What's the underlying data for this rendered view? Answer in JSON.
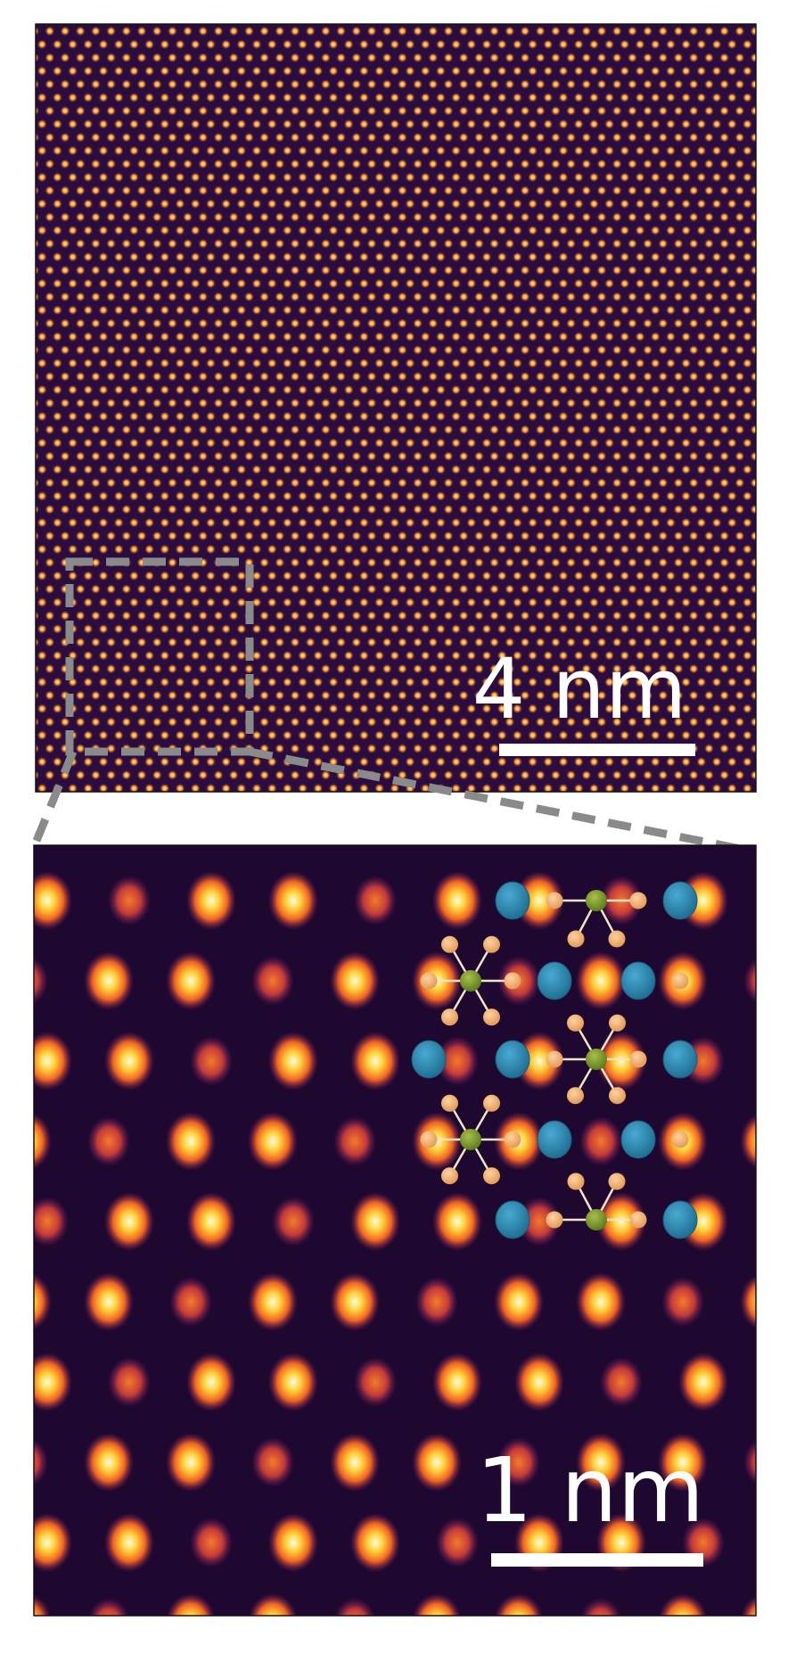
{
  "figure": {
    "top_panel": {
      "scale_bar_label": "4 nm"
    },
    "bottom_panel": {
      "scale_bar_label": "1 nm"
    }
  },
  "colors": {
    "frame": "#111111",
    "background_dark": "#2a0d3e",
    "atom_bright": "#ffd23a",
    "atom_dim": "#e0552c",
    "zoom_box": "#8a8a8a",
    "overlay_large_atom": "#2f8fb8",
    "overlay_center_atom": "#7a9c2f",
    "overlay_small_atom": "#f2b271",
    "overlay_bond": "#f5e3c6"
  }
}
